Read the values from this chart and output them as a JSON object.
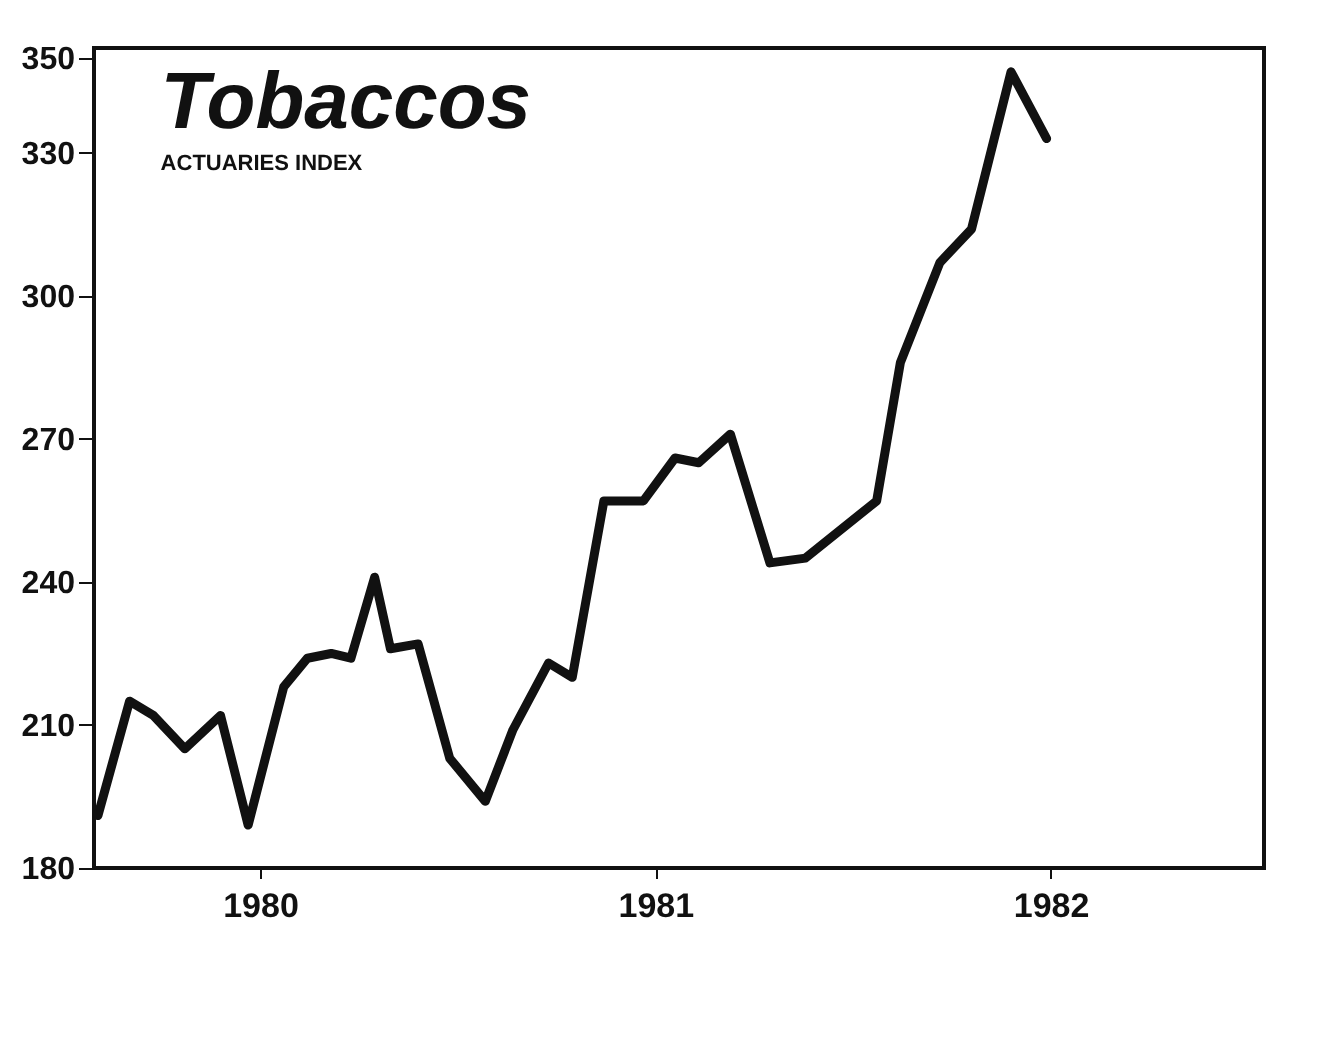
{
  "chart_data": {
    "type": "line",
    "title": "Tobaccos",
    "subtitle": "ACTUARIES INDEX",
    "x": [
      1979.59,
      1979.67,
      1979.73,
      1979.81,
      1979.9,
      1979.97,
      1980.06,
      1980.12,
      1980.18,
      1980.23,
      1980.29,
      1980.33,
      1980.4,
      1980.48,
      1980.57,
      1980.64,
      1980.73,
      1980.79,
      1980.87,
      1980.97,
      1981.05,
      1981.11,
      1981.19,
      1981.29,
      1981.38,
      1981.56,
      1981.62,
      1981.72,
      1981.8,
      1981.9,
      1981.99
    ],
    "series": [
      {
        "color": "#111111",
        "values": [
          191,
          215,
          212,
          205,
          212,
          189,
          218,
          224,
          225,
          224,
          241,
          226,
          227,
          203,
          194,
          209,
          223,
          220,
          257,
          257,
          266,
          265,
          271,
          244,
          245,
          257,
          286,
          307,
          314,
          347,
          333
        ]
      }
    ],
    "xlim": [
      1979.58,
      1982.54
    ],
    "xticks": [
      1980,
      1981,
      1982
    ],
    "ylim": [
      180,
      352
    ],
    "yticks": [
      180,
      210,
      240,
      270,
      300,
      330,
      350
    ],
    "grid": false,
    "legend": false,
    "marker": "none",
    "line_style": "solid"
  }
}
